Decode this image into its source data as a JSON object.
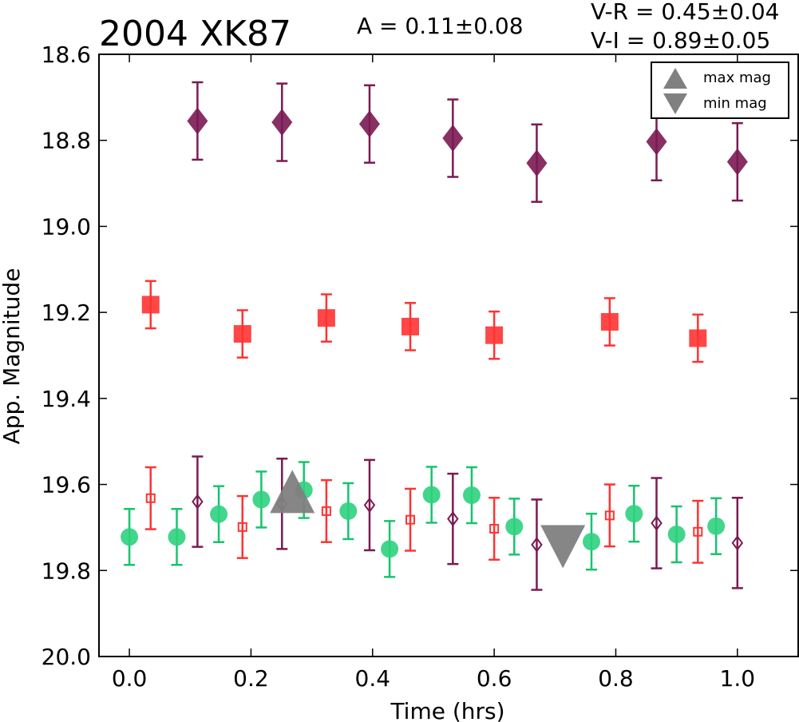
{
  "chart_data": {
    "type": "scatter",
    "title": "2004 XK87",
    "amplitude_text": "A  = 0.11±0.08",
    "color_indices": [
      "V-R = 0.45±0.04",
      "V-I  = 0.89±0.05"
    ],
    "xlabel": "Time (hrs)",
    "ylabel": "App. Magnitude",
    "xlim": [
      -0.05,
      1.1
    ],
    "ylim": [
      20.0,
      18.6
    ],
    "y_inverted": true,
    "grid": false,
    "x_ticks": [
      "0.0",
      "0.2",
      "0.4",
      "0.6",
      "0.8",
      "1.0"
    ],
    "y_ticks": [
      "18.6",
      "18.8",
      "19.0",
      "19.2",
      "19.4",
      "19.6",
      "19.8",
      "20.0"
    ],
    "legend": {
      "placement": "top-right",
      "entries": [
        {
          "label": "max mag",
          "marker": "triangle-up"
        },
        {
          "label": "min mag",
          "marker": "triangle-down"
        }
      ]
    },
    "series": [
      {
        "marker": "diamond",
        "filled": true,
        "color": "#7b1a52",
        "points": [
          {
            "x": 0.112,
            "y": 18.755,
            "err": 0.09
          },
          {
            "x": 0.251,
            "y": 18.758,
            "err": 0.09
          },
          {
            "x": 0.395,
            "y": 18.762,
            "err": 0.09
          },
          {
            "x": 0.532,
            "y": 18.795,
            "err": 0.09
          },
          {
            "x": 0.67,
            "y": 18.853,
            "err": 0.09
          },
          {
            "x": 0.867,
            "y": 18.803,
            "err": 0.09
          },
          {
            "x": 1.0,
            "y": 18.85,
            "err": 0.09
          }
        ]
      },
      {
        "marker": "square",
        "filled": true,
        "color": "#ff3333",
        "points": [
          {
            "x": 0.035,
            "y": 19.182,
            "err": 0.055
          },
          {
            "x": 0.186,
            "y": 19.25,
            "err": 0.055
          },
          {
            "x": 0.324,
            "y": 19.213,
            "err": 0.055
          },
          {
            "x": 0.462,
            "y": 19.233,
            "err": 0.055
          },
          {
            "x": 0.6,
            "y": 19.253,
            "err": 0.055
          },
          {
            "x": 0.79,
            "y": 19.222,
            "err": 0.055
          },
          {
            "x": 0.935,
            "y": 19.26,
            "err": 0.055
          }
        ]
      },
      {
        "marker": "circle",
        "filled": true,
        "color": "#2ed17e",
        "bar_color": "#16c46e",
        "points": [
          {
            "x": 0.0,
            "y": 19.722,
            "err": 0.065
          },
          {
            "x": 0.078,
            "y": 19.722,
            "err": 0.065
          },
          {
            "x": 0.147,
            "y": 19.669,
            "err": 0.065
          },
          {
            "x": 0.217,
            "y": 19.635,
            "err": 0.065
          },
          {
            "x": 0.287,
            "y": 19.613,
            "err": 0.065
          },
          {
            "x": 0.36,
            "y": 19.662,
            "err": 0.065
          },
          {
            "x": 0.428,
            "y": 19.75,
            "err": 0.065
          },
          {
            "x": 0.497,
            "y": 19.624,
            "err": 0.065
          },
          {
            "x": 0.563,
            "y": 19.625,
            "err": 0.065
          },
          {
            "x": 0.633,
            "y": 19.698,
            "err": 0.065
          },
          {
            "x": 0.76,
            "y": 19.733,
            "err": 0.065
          },
          {
            "x": 0.83,
            "y": 19.668,
            "err": 0.065
          },
          {
            "x": 0.9,
            "y": 19.716,
            "err": 0.065
          },
          {
            "x": 0.965,
            "y": 19.697,
            "err": 0.065
          }
        ]
      },
      {
        "marker": "square",
        "filled": false,
        "color": "#ff3333",
        "points": [
          {
            "x": 0.035,
            "y": 19.632,
            "err": 0.072
          },
          {
            "x": 0.186,
            "y": 19.699,
            "err": 0.072
          },
          {
            "x": 0.324,
            "y": 19.662,
            "err": 0.072
          },
          {
            "x": 0.462,
            "y": 19.682,
            "err": 0.072
          },
          {
            "x": 0.6,
            "y": 19.703,
            "err": 0.072
          },
          {
            "x": 0.79,
            "y": 19.672,
            "err": 0.072
          },
          {
            "x": 0.935,
            "y": 19.71,
            "err": 0.072
          }
        ]
      },
      {
        "marker": "diamond",
        "filled": false,
        "color": "#7b1a52",
        "points": [
          {
            "x": 0.112,
            "y": 19.64,
            "err": 0.105
          },
          {
            "x": 0.251,
            "y": 19.645,
            "err": 0.105
          },
          {
            "x": 0.395,
            "y": 19.648,
            "err": 0.105
          },
          {
            "x": 0.532,
            "y": 19.68,
            "err": 0.105
          },
          {
            "x": 0.67,
            "y": 19.74,
            "err": 0.105
          },
          {
            "x": 0.867,
            "y": 19.69,
            "err": 0.105
          },
          {
            "x": 1.0,
            "y": 19.736,
            "err": 0.105
          }
        ]
      },
      {
        "marker": "triangle-up",
        "filled": true,
        "color": "#808080",
        "points": [
          {
            "x": 0.268,
            "y": 19.633
          }
        ]
      },
      {
        "marker": "triangle-down",
        "filled": true,
        "color": "#808080",
        "points": [
          {
            "x": 0.713,
            "y": 19.728
          }
        ]
      }
    ]
  }
}
